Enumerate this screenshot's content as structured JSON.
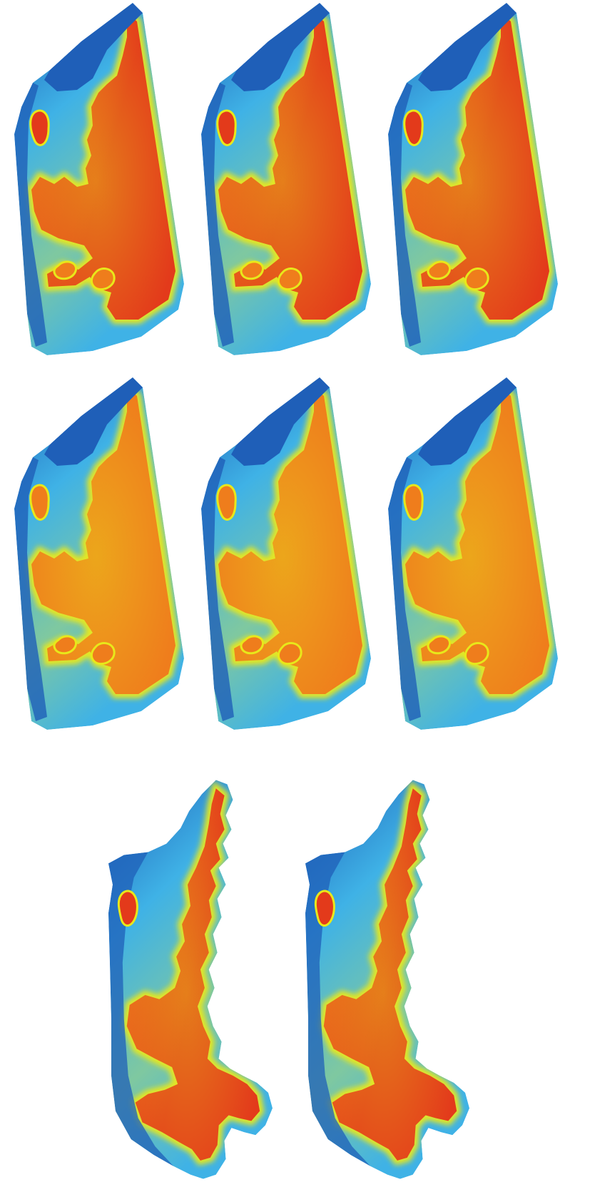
{
  "figure": {
    "rows": 3,
    "panels": [
      {
        "id": "p1",
        "row": 1,
        "variant": "hull",
        "core": "red"
      },
      {
        "id": "p2",
        "row": 1,
        "variant": "hull",
        "core": "red"
      },
      {
        "id": "p3",
        "row": 1,
        "variant": "hull",
        "core": "red"
      },
      {
        "id": "p4",
        "row": 2,
        "variant": "hull",
        "core": "orange"
      },
      {
        "id": "p5",
        "row": 2,
        "variant": "hull",
        "core": "orange"
      },
      {
        "id": "p6",
        "row": 2,
        "variant": "hull",
        "core": "orange"
      },
      {
        "id": "p7",
        "row": 3,
        "variant": "coast",
        "core": "orange-red"
      },
      {
        "id": "p8",
        "row": 3,
        "variant": "coast",
        "core": "orange-red"
      }
    ],
    "colormap": {
      "deep": "#1f5fb8",
      "low": "#3fb2e6",
      "mid": "#7fc8a0",
      "yellow": "#e8e81a",
      "orange": "#ef7d1c",
      "red": "#e33a1b"
    }
  }
}
